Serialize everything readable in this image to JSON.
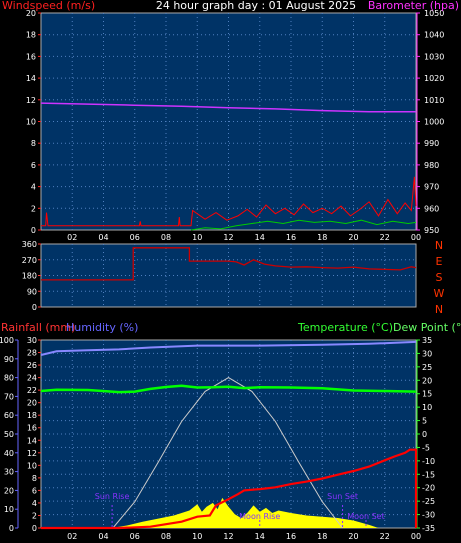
{
  "chart_data": [
    {
      "type": "line",
      "title": "24 hour graph day : 01 August 2025",
      "left_axis_label": "Windspeed (m/s)",
      "right_axis_label": "Barometer (hpa)",
      "left_ticks": [
        0,
        2,
        4,
        6,
        8,
        10,
        12,
        14,
        16,
        18,
        20
      ],
      "right_ticks": [
        950,
        960,
        970,
        980,
        990,
        1000,
        1010,
        1020,
        1030,
        1040,
        1050
      ],
      "ylim_left": [
        0,
        20
      ],
      "ylim_right": [
        950,
        1050
      ],
      "x_ticks": [
        "02",
        "04",
        "06",
        "08",
        "10",
        "12",
        "14",
        "16",
        "18",
        "20",
        "22",
        "00"
      ],
      "xlim_hours": [
        0,
        24
      ],
      "grid": true,
      "colors": {
        "wind": "#ff0000",
        "gust": "#ff0000",
        "avg": "#00cc00",
        "barometer": "#cc33ff",
        "left_label": "#ff2020",
        "right_label": "#ff33ff"
      },
      "series": [
        {
          "key": "barometer",
          "axis": "right",
          "points": [
            [
              0,
              1008.5
            ],
            [
              3,
              1008.0
            ],
            [
              6,
              1007.5
            ],
            [
              9,
              1007.0
            ],
            [
              12,
              1006.3
            ],
            [
              15,
              1005.8
            ],
            [
              18,
              1005.0
            ],
            [
              21,
              1004.5
            ],
            [
              24,
              1004.5
            ]
          ]
        },
        {
          "key": "gust",
          "axis": "left",
          "points": [
            [
              0,
              0.4
            ],
            [
              0.3,
              0.4
            ],
            [
              0.35,
              1.6
            ],
            [
              0.45,
              0.4
            ],
            [
              6.3,
              0.4
            ],
            [
              6.35,
              0.8
            ],
            [
              6.4,
              0.4
            ],
            [
              8.8,
              0.4
            ],
            [
              8.85,
              1.2
            ],
            [
              8.9,
              0.4
            ],
            [
              9.6,
              0.4
            ],
            [
              9.7,
              1.8
            ],
            [
              10.5,
              1.0
            ],
            [
              11.2,
              1.6
            ],
            [
              11.9,
              0.9
            ],
            [
              12.6,
              1.3
            ],
            [
              13.2,
              1.9
            ],
            [
              13.8,
              1.2
            ],
            [
              14.4,
              2.3
            ],
            [
              15.0,
              1.5
            ],
            [
              15.6,
              2.0
            ],
            [
              16.2,
              1.4
            ],
            [
              16.8,
              2.4
            ],
            [
              17.4,
              1.6
            ],
            [
              18.0,
              2.0
            ],
            [
              18.6,
              1.5
            ],
            [
              19.2,
              2.2
            ],
            [
              19.8,
              1.3
            ],
            [
              20.4,
              1.9
            ],
            [
              21.0,
              2.6
            ],
            [
              21.6,
              1.3
            ],
            [
              22.2,
              2.8
            ],
            [
              22.8,
              1.5
            ],
            [
              23.3,
              2.5
            ],
            [
              23.7,
              1.8
            ],
            [
              23.9,
              4.9
            ],
            [
              24,
              2.2
            ]
          ]
        },
        {
          "key": "avg",
          "axis": "left",
          "points": [
            [
              9.6,
              0.0
            ],
            [
              10.5,
              0.2
            ],
            [
              11.5,
              0.1
            ],
            [
              12.5,
              0.4
            ],
            [
              13.5,
              0.6
            ],
            [
              14.5,
              0.8
            ],
            [
              15.5,
              0.6
            ],
            [
              16.5,
              0.9
            ],
            [
              17.5,
              0.7
            ],
            [
              18.5,
              0.8
            ],
            [
              19.5,
              0.6
            ],
            [
              20.5,
              0.9
            ],
            [
              21.5,
              0.5
            ],
            [
              22.5,
              0.8
            ],
            [
              23.5,
              0.6
            ],
            [
              24,
              0.7
            ]
          ]
        }
      ]
    },
    {
      "type": "line",
      "ticks": [
        0,
        90,
        180,
        270,
        360
      ],
      "compass": [
        "N",
        "W",
        "S",
        "E",
        "N"
      ],
      "ylim": [
        0,
        360
      ],
      "x_ticks": [
        "02",
        "04",
        "06",
        "08",
        "10",
        "12",
        "14",
        "16",
        "18",
        "20",
        "22",
        "00"
      ],
      "xlim_hours": [
        0,
        24
      ],
      "colors": {
        "direction": "#cc0000",
        "compass": "#ff3300"
      },
      "series": [
        {
          "key": "direction",
          "points": [
            [
              0,
              155
            ],
            [
              5.9,
              155
            ],
            [
              5.9,
              338
            ],
            [
              9.5,
              338
            ],
            [
              9.5,
              262
            ],
            [
              12,
              262
            ],
            [
              12.5,
              258
            ],
            [
              13,
              240
            ],
            [
              13.6,
              270
            ],
            [
              14.3,
              245
            ],
            [
              15,
              235
            ],
            [
              16,
              228
            ],
            [
              17,
              230
            ],
            [
              18,
              225
            ],
            [
              19,
              222
            ],
            [
              20,
              228
            ],
            [
              21,
              218
            ],
            [
              22,
              215
            ],
            [
              23,
              212
            ],
            [
              23.7,
              230
            ],
            [
              24,
              225
            ]
          ]
        }
      ]
    },
    {
      "type": "line",
      "left_axis_label": "Rainfall (mm)",
      "left_axis_label2": "Humidity (%)",
      "right_axis_label": "Temperature (°C)",
      "right_axis_label2": "Dew Point (°C)",
      "rain_ticks": [
        0,
        2,
        4,
        6,
        8,
        10,
        12,
        14,
        16,
        18,
        20,
        22,
        24,
        26,
        28,
        30
      ],
      "humidity_ticks": [
        0,
        10,
        20,
        30,
        40,
        50,
        60,
        70,
        80,
        90,
        100
      ],
      "temp_ticks": [
        -35,
        -30,
        -25,
        -20,
        -15,
        -10,
        -5,
        0,
        5,
        10,
        15,
        20,
        25,
        30,
        35
      ],
      "ylim_rain": [
        0,
        30
      ],
      "ylim_temp": [
        -35,
        35
      ],
      "x_ticks": [
        "02",
        "04",
        "06",
        "08",
        "10",
        "12",
        "14",
        "16",
        "18",
        "20",
        "22",
        "00"
      ],
      "xlim_hours": [
        0,
        24
      ],
      "annotations": [
        "Sun Rise",
        "Sun Set",
        "Moon Rise",
        "Moon Set"
      ],
      "colors": {
        "rain": "#ff0000",
        "humidity": "#8888ff",
        "temperature": "#00ff00",
        "dewpoint": "#33ff33",
        "solar": "#ffff00",
        "sun_arc": "#cccccc",
        "annotation": "#8833ff",
        "rain_label": "#ff3333",
        "humidity_label": "#6666ff",
        "temp_label": "#33ff33",
        "dew_label": "#66ff66"
      },
      "series": [
        {
          "key": "humidity",
          "axis": "humidity",
          "points": [
            [
              0,
              92
            ],
            [
              1,
              94
            ],
            [
              3,
              94.5
            ],
            [
              5,
              95
            ],
            [
              7,
              96
            ],
            [
              10,
              97
            ],
            [
              14,
              97
            ],
            [
              18,
              97.5
            ],
            [
              21,
              98
            ],
            [
              24,
              99
            ]
          ]
        },
        {
          "key": "temperature",
          "axis": "temp",
          "points": [
            [
              0,
              16
            ],
            [
              1,
              16.5
            ],
            [
              3,
              16.4
            ],
            [
              5,
              15.6
            ],
            [
              6,
              15.8
            ],
            [
              7,
              16.8
            ],
            [
              8,
              17.5
            ],
            [
              9,
              18.0
            ],
            [
              10,
              17.3
            ],
            [
              11,
              17.4
            ],
            [
              12,
              17.6
            ],
            [
              13,
              17.1
            ],
            [
              14,
              17.4
            ],
            [
              16,
              17.3
            ],
            [
              18,
              17.0
            ],
            [
              20,
              16.2
            ],
            [
              22,
              16.0
            ],
            [
              24,
              15.8
            ]
          ]
        },
        {
          "key": "rain",
          "axis": "rain",
          "points": [
            [
              0,
              0
            ],
            [
              5,
              0
            ],
            [
              7,
              0.2
            ],
            [
              9,
              1.0
            ],
            [
              10,
              1.8
            ],
            [
              10.8,
              2.0
            ],
            [
              11.2,
              3.6
            ],
            [
              12,
              4.6
            ],
            [
              12.6,
              5.4
            ],
            [
              13,
              6.0
            ],
            [
              14,
              6.2
            ],
            [
              15,
              6.5
            ],
            [
              16,
              7.0
            ],
            [
              17,
              7.4
            ],
            [
              18,
              7.9
            ],
            [
              19,
              8.5
            ],
            [
              20,
              9.1
            ],
            [
              21,
              9.8
            ],
            [
              22,
              10.8
            ],
            [
              22.6,
              11.4
            ],
            [
              23.3,
              12.0
            ],
            [
              23.6,
              12.5
            ],
            [
              24,
              12.5
            ],
            [
              24,
              0
            ]
          ]
        },
        {
          "key": "solar",
          "axis": "rain",
          "points": [
            [
              0,
              0
            ],
            [
              4.5,
              0
            ],
            [
              5.5,
              0.4
            ],
            [
              6.5,
              1.0
            ],
            [
              7.5,
              1.5
            ],
            [
              8.5,
              2.0
            ],
            [
              9.5,
              2.8
            ],
            [
              10,
              3.8
            ],
            [
              10.3,
              2.6
            ],
            [
              10.6,
              3.4
            ],
            [
              11,
              4.0
            ],
            [
              11.3,
              3.0
            ],
            [
              11.6,
              4.8
            ],
            [
              12,
              3.4
            ],
            [
              12.4,
              2.2
            ],
            [
              12.8,
              1.6
            ],
            [
              13.2,
              2.4
            ],
            [
              13.6,
              3.6
            ],
            [
              14,
              2.6
            ],
            [
              14.4,
              3.2
            ],
            [
              14.8,
              2.4
            ],
            [
              15.2,
              2.8
            ],
            [
              16,
              2.4
            ],
            [
              17,
              2.0
            ],
            [
              18,
              1.8
            ],
            [
              19,
              1.6
            ],
            [
              20,
              1.2
            ],
            [
              21,
              0.5
            ],
            [
              21.6,
              0
            ],
            [
              24,
              0
            ]
          ]
        },
        {
          "key": "sun_arc",
          "axis": "rain",
          "points": [
            [
              4.6,
              0
            ],
            [
              6,
              4.2
            ],
            [
              7.5,
              10.5
            ],
            [
              9,
              17.0
            ],
            [
              10.5,
              21.8
            ],
            [
              12,
              24.0
            ],
            [
              13.5,
              21.8
            ],
            [
              15,
              17.0
            ],
            [
              16.5,
              10.5
            ],
            [
              18,
              4.2
            ],
            [
              19.3,
              0
            ]
          ]
        }
      ]
    }
  ]
}
